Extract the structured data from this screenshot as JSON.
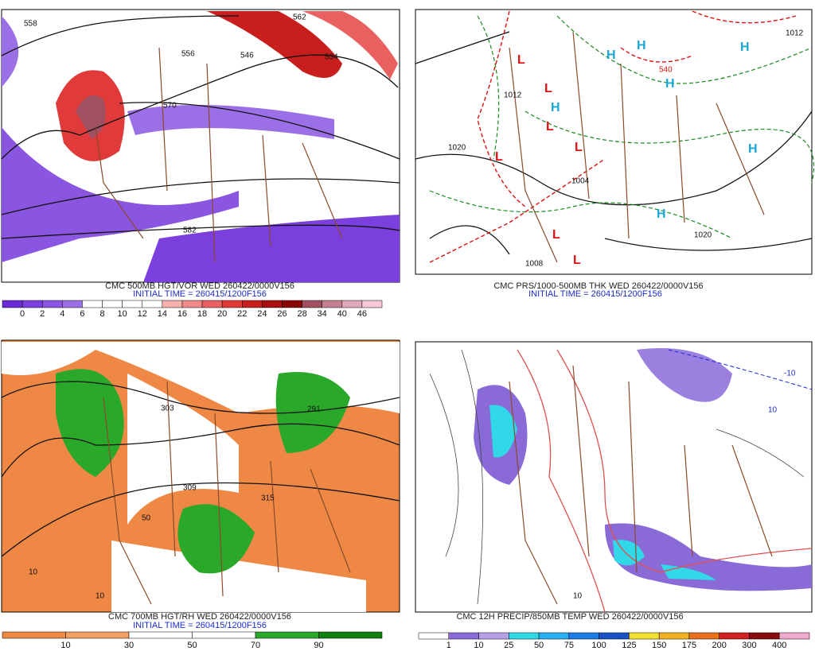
{
  "panels": [
    {
      "title": "CMC 500MB HGT/VOR WED 260422/0000V156",
      "initial": "INITIAL TIME = 260415/1200F156",
      "contours": [
        "558",
        "556",
        "546",
        "534",
        "570",
        "582",
        "562"
      ],
      "colorbar": {
        "labels": [
          0,
          2,
          4,
          6,
          8,
          10,
          12,
          14,
          16,
          18,
          20,
          22,
          24,
          26,
          28,
          34,
          40,
          46
        ],
        "colors": [
          "#6a2bd6",
          "#7a3fdc",
          "#8a55e0",
          "#9b6fe6",
          "#ffffff",
          "#ffffff",
          "#ffffff",
          "#ffffff",
          "#f7b0b0",
          "#f08a8a",
          "#e86060",
          "#e03a3a",
          "#c81e1e",
          "#a81010",
          "#880808",
          "#a05060",
          "#c48090",
          "#e0a8b8",
          "#f4c8d4"
        ]
      }
    },
    {
      "title": "CMC PRS/1000-500MB THK WED 260422/0000V156",
      "initial": "INITIAL TIME = 260415/1200F156",
      "contours": [
        "1020",
        "1012",
        "1004",
        "540",
        "1020",
        "1012",
        "1008"
      ],
      "highs": [
        "H",
        "H",
        "H",
        "H",
        "H",
        "H",
        "H"
      ],
      "lows": [
        "L",
        "L",
        "L",
        "L",
        "L",
        "L",
        "L"
      ]
    },
    {
      "title": "CMC 700MB HGT/RH WED 260422/0000V156",
      "initial": "INITIAL TIME = 260415/1200F156",
      "contours": [
        "303",
        "291",
        "309",
        "315",
        "10",
        "50",
        "10"
      ],
      "colorbar": {
        "labels": [
          10,
          30,
          50,
          70,
          90
        ],
        "colors": [
          "#ee8844",
          "#f4a060",
          "#ffffff",
          "#ffffff",
          "#2aa82a",
          "#0f7f0f"
        ]
      }
    },
    {
      "title": "CMC 12H PRECIP/850MB TEMP WED 260422/0000V156",
      "contours": [
        "10",
        "-10",
        "10"
      ],
      "colorbar": {
        "labels": [
          1,
          10,
          25,
          50,
          75,
          100,
          125,
          150,
          175,
          200,
          300,
          400
        ],
        "colors": [
          "#ffffff",
          "#8a6ad6",
          "#b8a0e8",
          "#30d8e8",
          "#2ab0f0",
          "#1e7ce8",
          "#1850c8",
          "#f4e030",
          "#f4b020",
          "#e87018",
          "#d02020",
          "#8a0c0c",
          "#f0a8d0"
        ]
      }
    }
  ]
}
